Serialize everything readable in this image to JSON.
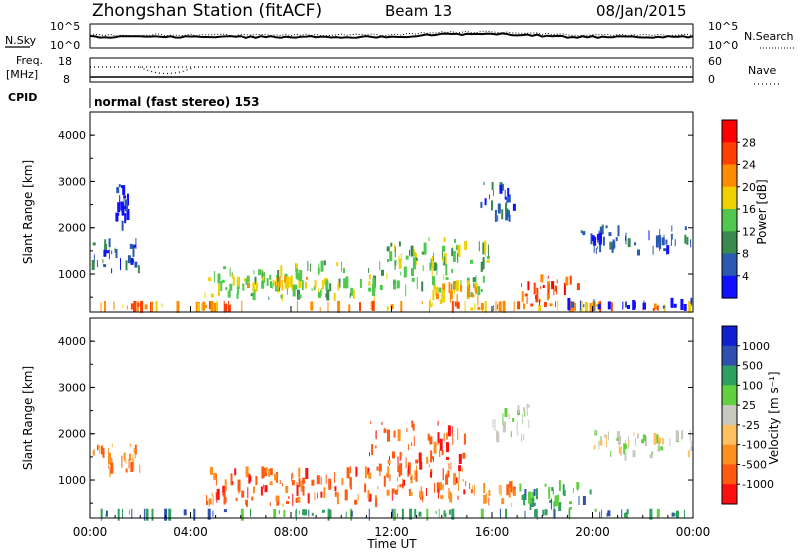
{
  "header": {
    "station": "Zhongshan Station (fitACF)",
    "beam": "Beam 13",
    "date": "08/Jan/2015"
  },
  "noise_panel": {
    "left_label": "N.Sky",
    "left_ticks": [
      "10^5",
      "10^0"
    ],
    "right_label": "N.Search",
    "right_ticks": [
      "10^5",
      "10^0"
    ]
  },
  "freq_panel": {
    "left_label_top": "Freq.",
    "left_label_unit": "[MHz]",
    "left_ticks": [
      "18",
      "8"
    ],
    "right_label": "Nave",
    "right_ticks": [
      "60",
      "0"
    ]
  },
  "cpid_panel": {
    "label": "CPID",
    "text": "normal (fast stereo) 153"
  },
  "x_axis": {
    "label": "Time UT",
    "ticks": [
      "00:00",
      "04:00",
      "08:00",
      "12:00",
      "16:00",
      "20:00",
      "00:00"
    ]
  },
  "colors": {
    "power_scale": [
      "#1010ff",
      "#2a5ab0",
      "#3a8a50",
      "#50c850",
      "#f0d000",
      "#ff8c00",
      "#ff4000",
      "#ff0000"
    ],
    "velocity_scale": [
      "#ff1010",
      "#ff5a10",
      "#ff9020",
      "#ffc060",
      "#c8c8c0",
      "#60d040",
      "#30a060",
      "#3050b0",
      "#1020d0"
    ]
  },
  "chart_data": [
    {
      "type": "heatmap",
      "ylabel": "Slant Range [km]",
      "xlabel": "",
      "ylim": [
        180,
        4500
      ],
      "y_ticks": [
        "1000",
        "2000",
        "3000",
        "4000"
      ],
      "xlim": [
        0,
        24
      ],
      "colorbar_label": "Power [dB]",
      "colorbar_ticks": [
        "4",
        "8",
        "12",
        "16",
        "20",
        "24",
        "28"
      ],
      "regions": [
        {
          "t0": 0.0,
          "t1": 24.0,
          "r0": 180,
          "r1": 420,
          "level": 5
        },
        {
          "t0": 0.0,
          "t1": 2.0,
          "r0": 1000,
          "r1": 1800,
          "level": 1
        },
        {
          "t0": 1.0,
          "t1": 1.6,
          "r0": 1800,
          "r1": 3000,
          "level": 0
        },
        {
          "t0": 4.5,
          "t1": 8.0,
          "r0": 400,
          "r1": 1200,
          "level": 3
        },
        {
          "t0": 5.5,
          "t1": 9.5,
          "r0": 600,
          "r1": 1000,
          "level": 4
        },
        {
          "t0": 8.0,
          "t1": 11.5,
          "r0": 400,
          "r1": 1300,
          "level": 3
        },
        {
          "t0": 11.5,
          "t1": 16.0,
          "r0": 500,
          "r1": 1800,
          "level": 3
        },
        {
          "t0": 13.0,
          "t1": 15.5,
          "r0": 300,
          "r1": 900,
          "level": 5
        },
        {
          "t0": 15.5,
          "t1": 17.0,
          "r0": 2000,
          "r1": 3000,
          "level": 1
        },
        {
          "t0": 17.0,
          "t1": 19.5,
          "r0": 300,
          "r1": 1000,
          "level": 6
        },
        {
          "t0": 19.5,
          "t1": 24.0,
          "r0": 1400,
          "r1": 2100,
          "level": 1
        },
        {
          "t0": 19.0,
          "t1": 24.0,
          "r0": 200,
          "r1": 500,
          "level": 0
        }
      ]
    },
    {
      "type": "heatmap",
      "ylabel": "Slant Range [km]",
      "xlabel": "Time UT",
      "ylim": [
        180,
        4500
      ],
      "y_ticks": [
        "1000",
        "2000",
        "3000",
        "4000"
      ],
      "xlim": [
        0,
        24
      ],
      "colorbar_label": "Velocity [m s⁻¹]",
      "colorbar_ticks": [
        "1000",
        "500",
        "100",
        "25",
        "-25",
        "-100",
        "-500",
        "-1000"
      ],
      "regions": [
        {
          "t0": 0.0,
          "t1": 24.0,
          "r0": 180,
          "r1": 380,
          "level": 6
        },
        {
          "t0": 0.0,
          "t1": 2.0,
          "r0": 1000,
          "r1": 1800,
          "level": 2
        },
        {
          "t0": 4.5,
          "t1": 11.5,
          "r0": 400,
          "r1": 1300,
          "level": 1
        },
        {
          "t0": 11.0,
          "t1": 15.0,
          "r0": 500,
          "r1": 2300,
          "level": 1
        },
        {
          "t0": 15.0,
          "t1": 17.0,
          "r0": 400,
          "r1": 1000,
          "level": 2
        },
        {
          "t0": 16.0,
          "t1": 17.5,
          "r0": 1800,
          "r1": 2700,
          "level": 4
        },
        {
          "t0": 17.0,
          "t1": 20.0,
          "r0": 300,
          "r1": 1000,
          "level": 6
        },
        {
          "t0": 20.0,
          "t1": 24.0,
          "r0": 1400,
          "r1": 2100,
          "level": 4
        }
      ]
    }
  ]
}
